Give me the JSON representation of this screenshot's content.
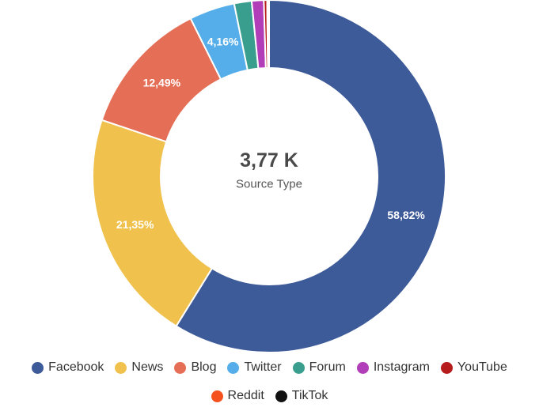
{
  "chart_data": {
    "type": "pie",
    "variant": "donut",
    "center_value": "3,77 K",
    "center_label": "Source Type",
    "legend_position": "bottom",
    "slices": [
      {
        "name": "Facebook",
        "value": 58.82,
        "label": "58,82%",
        "color": "#3d5a99"
      },
      {
        "name": "News",
        "value": 21.35,
        "label": "21,35%",
        "color": "#f0c24d"
      },
      {
        "name": "Blog",
        "value": 12.49,
        "label": "12,49%",
        "color": "#e56e57"
      },
      {
        "name": "Twitter",
        "value": 4.16,
        "label": "4,16%",
        "color": "#55aee9"
      },
      {
        "name": "Forum",
        "value": 1.6,
        "label": "",
        "color": "#3a9e8e"
      },
      {
        "name": "Instagram",
        "value": 1.1,
        "label": "",
        "color": "#b13eb8"
      },
      {
        "name": "YouTube",
        "value": 0.3,
        "label": "",
        "color": "#b71c1c"
      },
      {
        "name": "Reddit",
        "value": 0.12,
        "label": "",
        "color": "#f4511e"
      },
      {
        "name": "TikTok",
        "value": 0.06,
        "label": "",
        "color": "#111111"
      }
    ]
  }
}
